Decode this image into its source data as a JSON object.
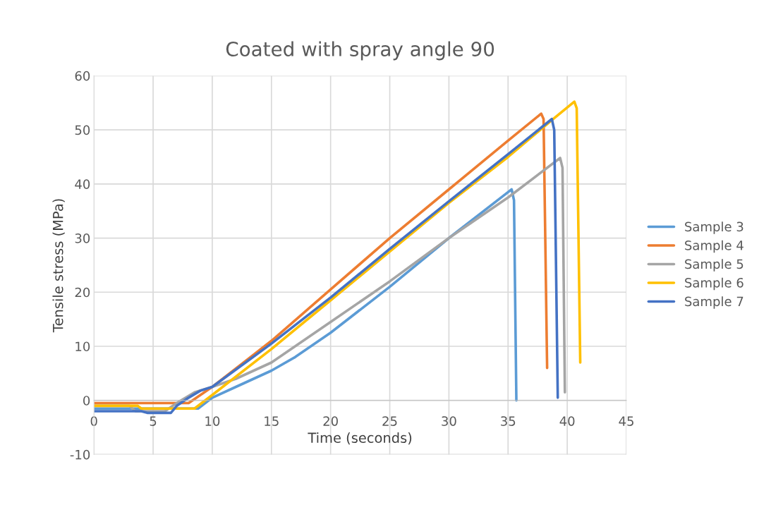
{
  "chart_data": {
    "type": "line",
    "title": "Coated with spray angle 90",
    "xlabel": "Time (seconds)",
    "ylabel": "Tensile stress (MPa)",
    "xlim": [
      0,
      45
    ],
    "xticks": [
      0,
      5,
      10,
      15,
      20,
      25,
      30,
      35,
      40,
      45
    ],
    "ylim": [
      -10,
      60
    ],
    "yticks": [
      -10,
      0,
      10,
      20,
      30,
      40,
      50,
      60
    ],
    "grid": true,
    "legend": "right",
    "line_style": "solid",
    "marker": "none",
    "series": [
      {
        "name": "Sample 3",
        "color": "#5b9bd5",
        "x": [
          0,
          8.8,
          10,
          12,
          15,
          17,
          20,
          25,
          30,
          35,
          35.3,
          35.5,
          35.7
        ],
        "values": [
          -1.5,
          -1.5,
          0.5,
          2.5,
          5.5,
          8,
          12.5,
          21,
          30,
          38.5,
          39,
          37,
          0
        ]
      },
      {
        "name": "Sample 4",
        "color": "#ed7d31",
        "x": [
          0,
          8,
          10,
          15,
          20,
          25,
          30,
          35,
          37.8,
          38,
          38.3
        ],
        "values": [
          -0.5,
          -0.5,
          2.5,
          11,
          20.5,
          30,
          39,
          48,
          53,
          52,
          6
        ]
      },
      {
        "name": "Sample 5",
        "color": "#a5a5a5",
        "x": [
          0,
          3,
          3.5,
          6,
          7,
          8.5,
          10,
          12,
          15,
          20,
          25,
          30,
          35,
          39.4,
          39.6,
          39.8
        ],
        "values": [
          -1,
          -1,
          -2,
          -2,
          -0.5,
          1.5,
          2.5,
          4,
          7,
          14.5,
          22,
          30,
          37.5,
          44.8,
          43,
          1.5
        ]
      },
      {
        "name": "Sample 6",
        "color": "#ffc000",
        "x": [
          0,
          3.7,
          4,
          8.5,
          10,
          15,
          20,
          25,
          30,
          35,
          38.8,
          40.6,
          40.8,
          41.1
        ],
        "values": [
          -1,
          -1,
          -1.5,
          -1.5,
          1,
          9.5,
          18.5,
          27.5,
          36.5,
          45,
          52,
          55.2,
          54,
          7
        ]
      },
      {
        "name": "Sample 7",
        "color": "#4472c4",
        "x": [
          0,
          4,
          4.5,
          6.5,
          7,
          8,
          9,
          10,
          15,
          20,
          25,
          30,
          35,
          38.7,
          38.9,
          39.2
        ],
        "values": [
          -2,
          -2,
          -2.3,
          -2.3,
          -1,
          0.5,
          1.8,
          2.5,
          10.5,
          19,
          28,
          36.8,
          45.5,
          52,
          50,
          0.5
        ]
      }
    ]
  }
}
